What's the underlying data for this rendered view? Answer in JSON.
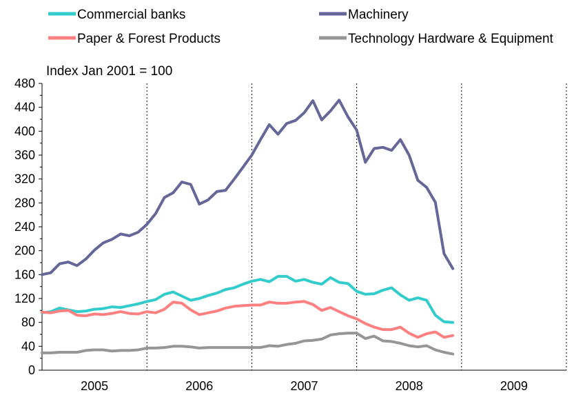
{
  "chart_data": {
    "type": "line",
    "title": "",
    "ylabel": "Index Jan 2001 = 100",
    "xlabel": "",
    "ylim": [
      0,
      480
    ],
    "yticks": [
      0,
      40,
      80,
      120,
      160,
      200,
      240,
      280,
      320,
      360,
      400,
      440,
      480
    ],
    "xlim": [
      2005,
      2010
    ],
    "year_labels": [
      "2005",
      "2006",
      "2007",
      "2008",
      "2009"
    ],
    "grid": "vertical lines at year boundaries",
    "legend_position": "top",
    "x": [
      2005.0,
      2005.083,
      2005.167,
      2005.25,
      2005.333,
      2005.417,
      2005.5,
      2005.583,
      2005.667,
      2005.75,
      2005.833,
      2005.917,
      2006.0,
      2006.083,
      2006.167,
      2006.25,
      2006.333,
      2006.417,
      2006.5,
      2006.583,
      2006.667,
      2006.75,
      2006.833,
      2006.917,
      2007.0,
      2007.083,
      2007.167,
      2007.25,
      2007.333,
      2007.417,
      2007.5,
      2007.583,
      2007.667,
      2007.75,
      2007.833,
      2007.917,
      2008.0,
      2008.083,
      2008.167,
      2008.25,
      2008.333,
      2008.417,
      2008.5,
      2008.583,
      2008.667,
      2008.75,
      2008.833,
      2008.917
    ],
    "series": [
      {
        "name": "Commercial banks",
        "color": "#33CCCC",
        "values": [
          96,
          98,
          104,
          101,
          98,
          99,
          102,
          103,
          106,
          105,
          108,
          111,
          115,
          118,
          127,
          131,
          124,
          117,
          120,
          125,
          129,
          135,
          138,
          144,
          149,
          152,
          148,
          157,
          157,
          149,
          152,
          147,
          144,
          155,
          147,
          145,
          132,
          127,
          128,
          134,
          138,
          126,
          117,
          121,
          117,
          92,
          81,
          80
        ]
      },
      {
        "name": "Machinery",
        "color": "#666699",
        "values": [
          160,
          163,
          178,
          181,
          175,
          186,
          201,
          213,
          219,
          228,
          225,
          231,
          244,
          262,
          289,
          297,
          315,
          311,
          278,
          285,
          299,
          301,
          320,
          340,
          360,
          386,
          411,
          395,
          413,
          418,
          431,
          451,
          419,
          434,
          452,
          424,
          402,
          348,
          371,
          373,
          368,
          386,
          360,
          318,
          306,
          281,
          195,
          170
        ]
      },
      {
        "name": "Paper & Forest Products",
        "color": "#FF8080",
        "values": [
          97,
          96,
          99,
          100,
          92,
          91,
          94,
          93,
          95,
          98,
          95,
          94,
          98,
          96,
          102,
          114,
          112,
          101,
          93,
          96,
          99,
          104,
          107,
          108,
          109,
          109,
          114,
          112,
          112,
          114,
          115,
          110,
          100,
          105,
          98,
          91,
          86,
          78,
          72,
          68,
          68,
          72,
          62,
          55,
          61,
          64,
          55,
          58
        ]
      },
      {
        "name": "Technology Hardware & Equipment",
        "color": "#969696",
        "values": [
          29,
          29,
          30,
          30,
          30,
          33,
          34,
          34,
          32,
          33,
          33,
          34,
          37,
          37,
          38,
          40,
          40,
          39,
          37,
          38,
          38,
          38,
          38,
          38,
          38,
          38,
          41,
          40,
          43,
          45,
          49,
          50,
          52,
          59,
          61,
          62,
          62,
          53,
          57,
          49,
          48,
          45,
          41,
          39,
          41,
          34,
          30,
          27
        ]
      }
    ]
  }
}
